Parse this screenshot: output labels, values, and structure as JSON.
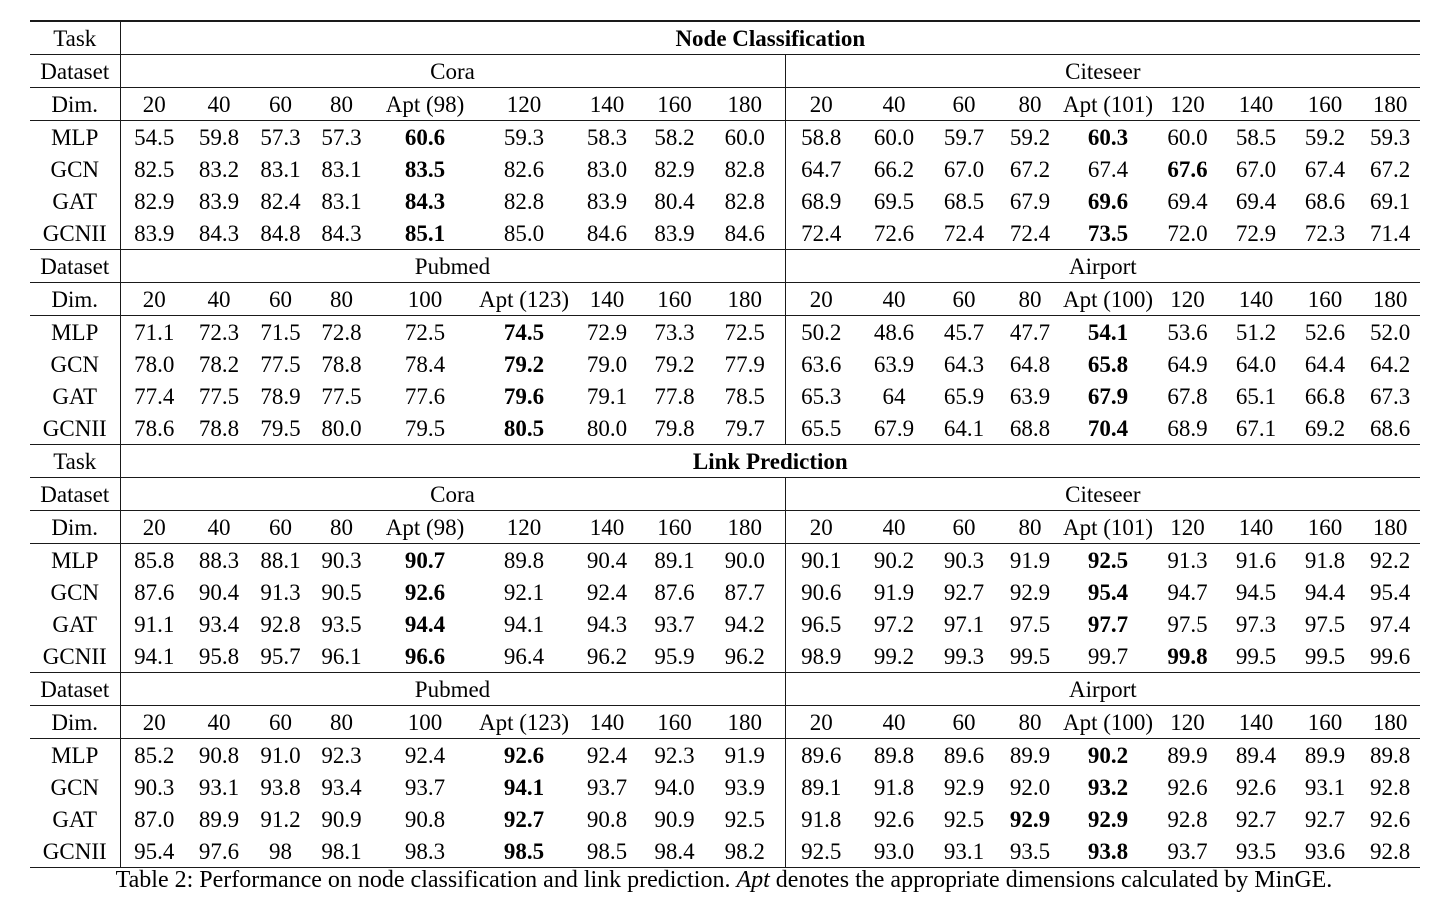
{
  "table": {
    "corner_labels": {
      "task": "Task",
      "dataset": "Dataset",
      "dim": "Dim."
    },
    "sections": [
      {
        "task_label": "Node Classification",
        "blocks": [
          {
            "left": {
              "name": "Cora",
              "dims": [
                "20",
                "40",
                "60",
                "80",
                "Apt (98)",
                "120",
                "140",
                "160",
                "180"
              ],
              "rows": [
                {
                  "model": "MLP",
                  "values": [
                    "54.5",
                    "59.8",
                    "57.3",
                    "57.3",
                    "60.6",
                    "59.3",
                    "58.3",
                    "58.2",
                    "60.0"
                  ],
                  "bold": [
                    4
                  ]
                },
                {
                  "model": "GCN",
                  "values": [
                    "82.5",
                    "83.2",
                    "83.1",
                    "83.1",
                    "83.5",
                    "82.6",
                    "83.0",
                    "82.9",
                    "82.8"
                  ],
                  "bold": [
                    4
                  ]
                },
                {
                  "model": "GAT",
                  "values": [
                    "82.9",
                    "83.9",
                    "82.4",
                    "83.1",
                    "84.3",
                    "82.8",
                    "83.9",
                    "80.4",
                    "82.8"
                  ],
                  "bold": [
                    4
                  ]
                },
                {
                  "model": "GCNII",
                  "values": [
                    "83.9",
                    "84.3",
                    "84.8",
                    "84.3",
                    "85.1",
                    "85.0",
                    "84.6",
                    "83.9",
                    "84.6"
                  ],
                  "bold": [
                    4
                  ]
                }
              ]
            },
            "right": {
              "name": "Citeseer",
              "dims": [
                "20",
                "40",
                "60",
                "80",
                "Apt (101)",
                "120",
                "140",
                "160",
                "180"
              ],
              "rows": [
                {
                  "model": "MLP",
                  "values": [
                    "58.8",
                    "60.0",
                    "59.7",
                    "59.2",
                    "60.3",
                    "60.0",
                    "58.5",
                    "59.2",
                    "59.3"
                  ],
                  "bold": [
                    4
                  ]
                },
                {
                  "model": "GCN",
                  "values": [
                    "64.7",
                    "66.2",
                    "67.0",
                    "67.2",
                    "67.4",
                    "67.6",
                    "67.0",
                    "67.4",
                    "67.2"
                  ],
                  "bold": [
                    5
                  ]
                },
                {
                  "model": "GAT",
                  "values": [
                    "68.9",
                    "69.5",
                    "68.5",
                    "67.9",
                    "69.6",
                    "69.4",
                    "69.4",
                    "68.6",
                    "69.1"
                  ],
                  "bold": [
                    4
                  ]
                },
                {
                  "model": "GCNII",
                  "values": [
                    "72.4",
                    "72.6",
                    "72.4",
                    "72.4",
                    "73.5",
                    "72.0",
                    "72.9",
                    "72.3",
                    "71.4"
                  ],
                  "bold": [
                    4
                  ]
                }
              ]
            }
          },
          {
            "left": {
              "name": "Pubmed",
              "dims": [
                "20",
                "40",
                "60",
                "80",
                "100",
                "Apt (123)",
                "140",
                "160",
                "180"
              ],
              "rows": [
                {
                  "model": "MLP",
                  "values": [
                    "71.1",
                    "72.3",
                    "71.5",
                    "72.8",
                    "72.5",
                    "74.5",
                    "72.9",
                    "73.3",
                    "72.5"
                  ],
                  "bold": [
                    5
                  ]
                },
                {
                  "model": "GCN",
                  "values": [
                    "78.0",
                    "78.2",
                    "77.5",
                    "78.8",
                    "78.4",
                    "79.2",
                    "79.0",
                    "79.2",
                    "77.9"
                  ],
                  "bold": [
                    5
                  ]
                },
                {
                  "model": "GAT",
                  "values": [
                    "77.4",
                    "77.5",
                    "78.9",
                    "77.5",
                    "77.6",
                    "79.6",
                    "79.1",
                    "77.8",
                    "78.5"
                  ],
                  "bold": [
                    5
                  ]
                },
                {
                  "model": "GCNII",
                  "values": [
                    "78.6",
                    "78.8",
                    "79.5",
                    "80.0",
                    "79.5",
                    "80.5",
                    "80.0",
                    "79.8",
                    "79.7"
                  ],
                  "bold": [
                    5
                  ]
                }
              ]
            },
            "right": {
              "name": "Airport",
              "dims": [
                "20",
                "40",
                "60",
                "80",
                "Apt (100)",
                "120",
                "140",
                "160",
                "180"
              ],
              "rows": [
                {
                  "model": "MLP",
                  "values": [
                    "50.2",
                    "48.6",
                    "45.7",
                    "47.7",
                    "54.1",
                    "53.6",
                    "51.2",
                    "52.6",
                    "52.0"
                  ],
                  "bold": [
                    4
                  ]
                },
                {
                  "model": "GCN",
                  "values": [
                    "63.6",
                    "63.9",
                    "64.3",
                    "64.8",
                    "65.8",
                    "64.9",
                    "64.0",
                    "64.4",
                    "64.2"
                  ],
                  "bold": [
                    4
                  ]
                },
                {
                  "model": "GAT",
                  "values": [
                    "65.3",
                    "64",
                    "65.9",
                    "63.9",
                    "67.9",
                    "67.8",
                    "65.1",
                    "66.8",
                    "67.3"
                  ],
                  "bold": [
                    4
                  ]
                },
                {
                  "model": "GCNII",
                  "values": [
                    "65.5",
                    "67.9",
                    "64.1",
                    "68.8",
                    "70.4",
                    "68.9",
                    "67.1",
                    "69.2",
                    "68.6"
                  ],
                  "bold": [
                    4
                  ]
                }
              ]
            }
          }
        ]
      },
      {
        "task_label": "Link Prediction",
        "blocks": [
          {
            "left": {
              "name": "Cora",
              "dims": [
                "20",
                "40",
                "60",
                "80",
                "Apt (98)",
                "120",
                "140",
                "160",
                "180"
              ],
              "rows": [
                {
                  "model": "MLP",
                  "values": [
                    "85.8",
                    "88.3",
                    "88.1",
                    "90.3",
                    "90.7",
                    "89.8",
                    "90.4",
                    "89.1",
                    "90.0"
                  ],
                  "bold": [
                    4
                  ]
                },
                {
                  "model": "GCN",
                  "values": [
                    "87.6",
                    "90.4",
                    "91.3",
                    "90.5",
                    "92.6",
                    "92.1",
                    "92.4",
                    "87.6",
                    "87.7"
                  ],
                  "bold": [
                    4
                  ]
                },
                {
                  "model": "GAT",
                  "values": [
                    "91.1",
                    "93.4",
                    "92.8",
                    "93.5",
                    "94.4",
                    "94.1",
                    "94.3",
                    "93.7",
                    "94.2"
                  ],
                  "bold": [
                    4
                  ]
                },
                {
                  "model": "GCNII",
                  "values": [
                    "94.1",
                    "95.8",
                    "95.7",
                    "96.1",
                    "96.6",
                    "96.4",
                    "96.2",
                    "95.9",
                    "96.2"
                  ],
                  "bold": [
                    4
                  ]
                }
              ]
            },
            "right": {
              "name": "Citeseer",
              "dims": [
                "20",
                "40",
                "60",
                "80",
                "Apt (101)",
                "120",
                "140",
                "160",
                "180"
              ],
              "rows": [
                {
                  "model": "MLP",
                  "values": [
                    "90.1",
                    "90.2",
                    "90.3",
                    "91.9",
                    "92.5",
                    "91.3",
                    "91.6",
                    "91.8",
                    "92.2"
                  ],
                  "bold": [
                    4
                  ]
                },
                {
                  "model": "GCN",
                  "values": [
                    "90.6",
                    "91.9",
                    "92.7",
                    "92.9",
                    "95.4",
                    "94.7",
                    "94.5",
                    "94.4",
                    "95.4"
                  ],
                  "bold": [
                    4
                  ]
                },
                {
                  "model": "GAT",
                  "values": [
                    "96.5",
                    "97.2",
                    "97.1",
                    "97.5",
                    "97.7",
                    "97.5",
                    "97.3",
                    "97.5",
                    "97.4"
                  ],
                  "bold": [
                    4
                  ]
                },
                {
                  "model": "GCNII",
                  "values": [
                    "98.9",
                    "99.2",
                    "99.3",
                    "99.5",
                    "99.7",
                    "99.8",
                    "99.5",
                    "99.5",
                    "99.6"
                  ],
                  "bold": [
                    5
                  ]
                }
              ]
            }
          },
          {
            "left": {
              "name": "Pubmed",
              "dims": [
                "20",
                "40",
                "60",
                "80",
                "100",
                "Apt (123)",
                "140",
                "160",
                "180"
              ],
              "rows": [
                {
                  "model": "MLP",
                  "values": [
                    "85.2",
                    "90.8",
                    "91.0",
                    "92.3",
                    "92.4",
                    "92.6",
                    "92.4",
                    "92.3",
                    "91.9"
                  ],
                  "bold": [
                    5
                  ]
                },
                {
                  "model": "GCN",
                  "values": [
                    "90.3",
                    "93.1",
                    "93.8",
                    "93.4",
                    "93.7",
                    "94.1",
                    "93.7",
                    "94.0",
                    "93.9"
                  ],
                  "bold": [
                    5
                  ]
                },
                {
                  "model": "GAT",
                  "values": [
                    "87.0",
                    "89.9",
                    "91.2",
                    "90.9",
                    "90.8",
                    "92.7",
                    "90.8",
                    "90.9",
                    "92.5"
                  ],
                  "bold": [
                    5
                  ]
                },
                {
                  "model": "GCNII",
                  "values": [
                    "95.4",
                    "97.6",
                    "98",
                    "98.1",
                    "98.3",
                    "98.5",
                    "98.5",
                    "98.4",
                    "98.2"
                  ],
                  "bold": [
                    5
                  ]
                }
              ]
            },
            "right": {
              "name": "Airport",
              "dims": [
                "20",
                "40",
                "60",
                "80",
                "Apt (100)",
                "120",
                "140",
                "160",
                "180"
              ],
              "rows": [
                {
                  "model": "MLP",
                  "values": [
                    "89.6",
                    "89.8",
                    "89.6",
                    "89.9",
                    "90.2",
                    "89.9",
                    "89.4",
                    "89.9",
                    "89.8"
                  ],
                  "bold": [
                    4
                  ]
                },
                {
                  "model": "GCN",
                  "values": [
                    "89.1",
                    "91.8",
                    "92.9",
                    "92.0",
                    "93.2",
                    "92.6",
                    "92.6",
                    "93.1",
                    "92.8"
                  ],
                  "bold": [
                    4
                  ]
                },
                {
                  "model": "GAT",
                  "values": [
                    "91.8",
                    "92.6",
                    "92.5",
                    "92.9",
                    "92.9",
                    "92.8",
                    "92.7",
                    "92.7",
                    "92.6"
                  ],
                  "bold": [
                    3,
                    4
                  ]
                },
                {
                  "model": "GCNII",
                  "values": [
                    "92.5",
                    "93.0",
                    "93.1",
                    "93.5",
                    "93.8",
                    "93.7",
                    "93.5",
                    "93.6",
                    "92.8"
                  ],
                  "bold": [
                    4
                  ]
                }
              ]
            }
          }
        ]
      }
    ]
  },
  "caption": {
    "prefix": "Table 2: Performance on node classification and link prediction. ",
    "italic_term": "Apt",
    "suffix": " denotes the appropriate dimensions calculated by MinGE."
  }
}
